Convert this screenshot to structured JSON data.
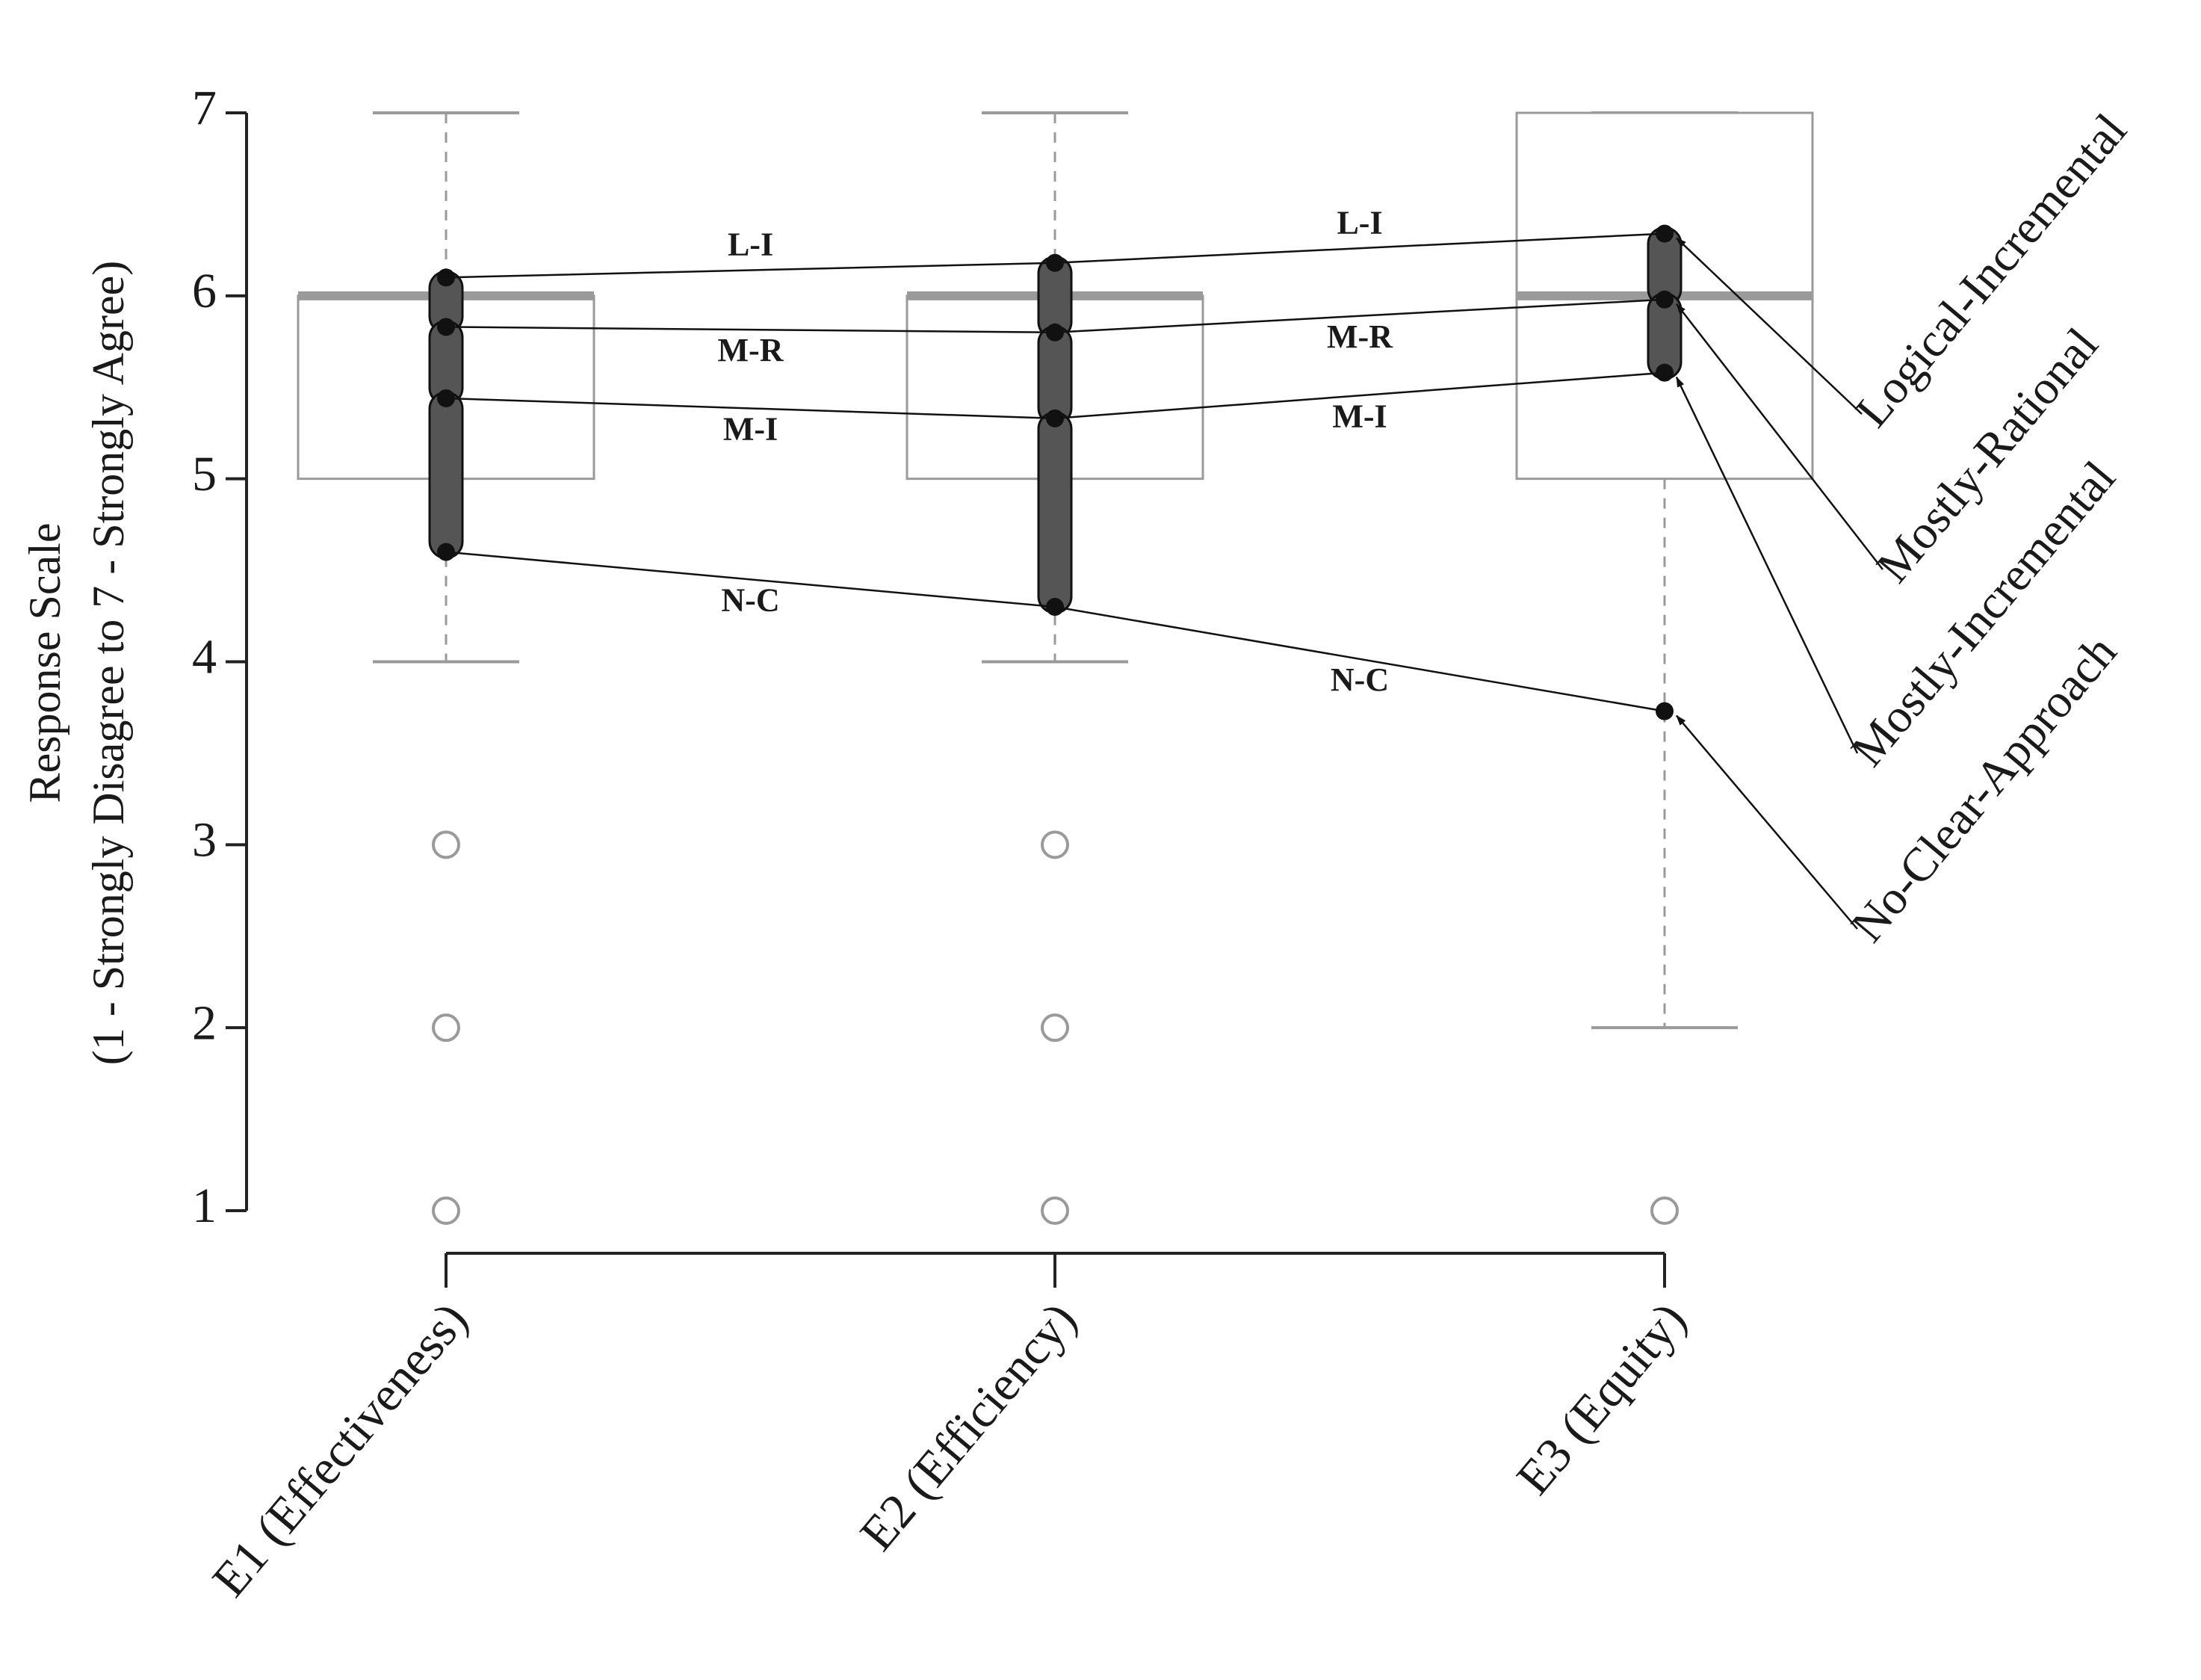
{
  "chart_data": {
    "type": "box",
    "ylabel": [
      "Response Scale",
      "(1 - Strongly Disagree to 7 - Strongly Agree)"
    ],
    "categories": [
      "E1 (Effectiveness)",
      "E2 (Efficiency)",
      "E3 (Equity)"
    ],
    "ylim": [
      1,
      7
    ],
    "yticks": [
      1,
      2,
      3,
      4,
      5,
      6,
      7
    ],
    "box_color": "#9a9a9a",
    "boxes": [
      {
        "whislo": 4,
        "q1": 5,
        "med": 6,
        "q3": 6,
        "whishi": 7,
        "fliers": [
          3,
          2,
          1
        ]
      },
      {
        "whislo": 4,
        "q1": 5,
        "med": 6,
        "q3": 6,
        "whishi": 7,
        "fliers": [
          3,
          2,
          1
        ]
      },
      {
        "whislo": 2,
        "q1": 5,
        "med": 6,
        "q3": 7,
        "whishi": 7,
        "fliers": [
          1
        ]
      }
    ],
    "series": [
      {
        "name": "Logical-Incremental",
        "abbr": "L-I",
        "values": [
          6.1,
          6.18,
          6.34
        ]
      },
      {
        "name": "Mostly-Rational",
        "abbr": "M-R",
        "values": [
          5.83,
          5.8,
          5.98
        ]
      },
      {
        "name": "Mostly-Incremental",
        "abbr": "M-I",
        "values": [
          5.44,
          5.33,
          5.58
        ]
      },
      {
        "name": "No-Clear-Approach",
        "abbr": "N-C",
        "values": [
          4.6,
          4.3,
          3.73
        ]
      }
    ],
    "line_color": "#111111",
    "band_color": "#555555"
  }
}
